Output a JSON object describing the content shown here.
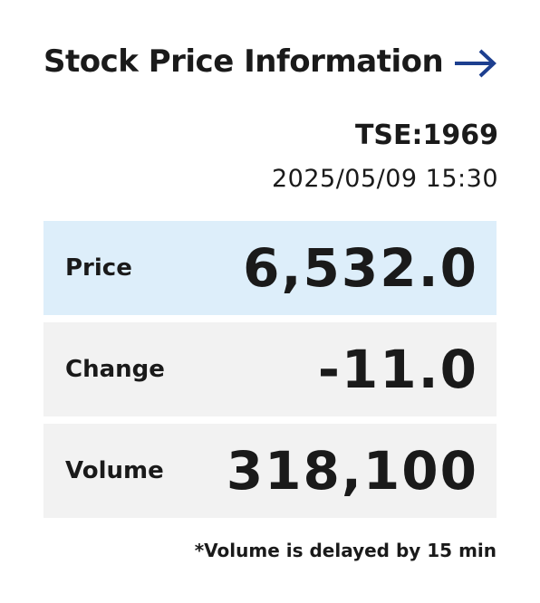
{
  "header": {
    "title": "Stock Price Information"
  },
  "ticker": "TSE:1969",
  "timestamp": "2025/05/09 15:30",
  "table": {
    "rows": [
      [
        "Price",
        "6,532.0"
      ],
      [
        "Change",
        "-11.0"
      ],
      [
        "Volume",
        "318,100"
      ]
    ]
  },
  "note": "*Volume is delayed by 15 min"
}
